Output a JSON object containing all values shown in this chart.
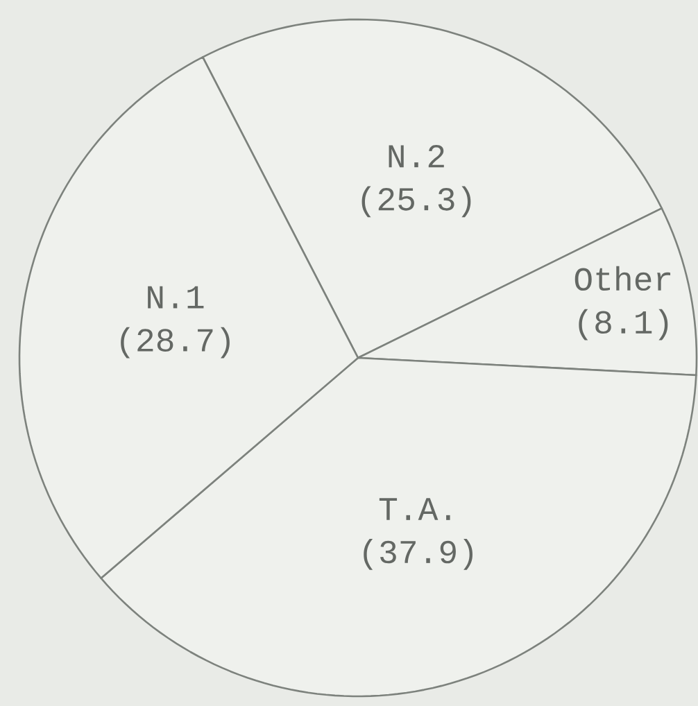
{
  "chart_data": {
    "type": "pie",
    "categories": [
      "N.2",
      "Other",
      "T.A.",
      "N.1"
    ],
    "values": [
      25.3,
      8.1,
      37.9,
      28.7
    ],
    "value_labels": [
      "(25.3)",
      "(8.1)",
      "(37.9)",
      "(28.7)"
    ],
    "colors": [
      "#eff1ed",
      "#eff1ed",
      "#eff1ed",
      "#eff1ed"
    ]
  }
}
